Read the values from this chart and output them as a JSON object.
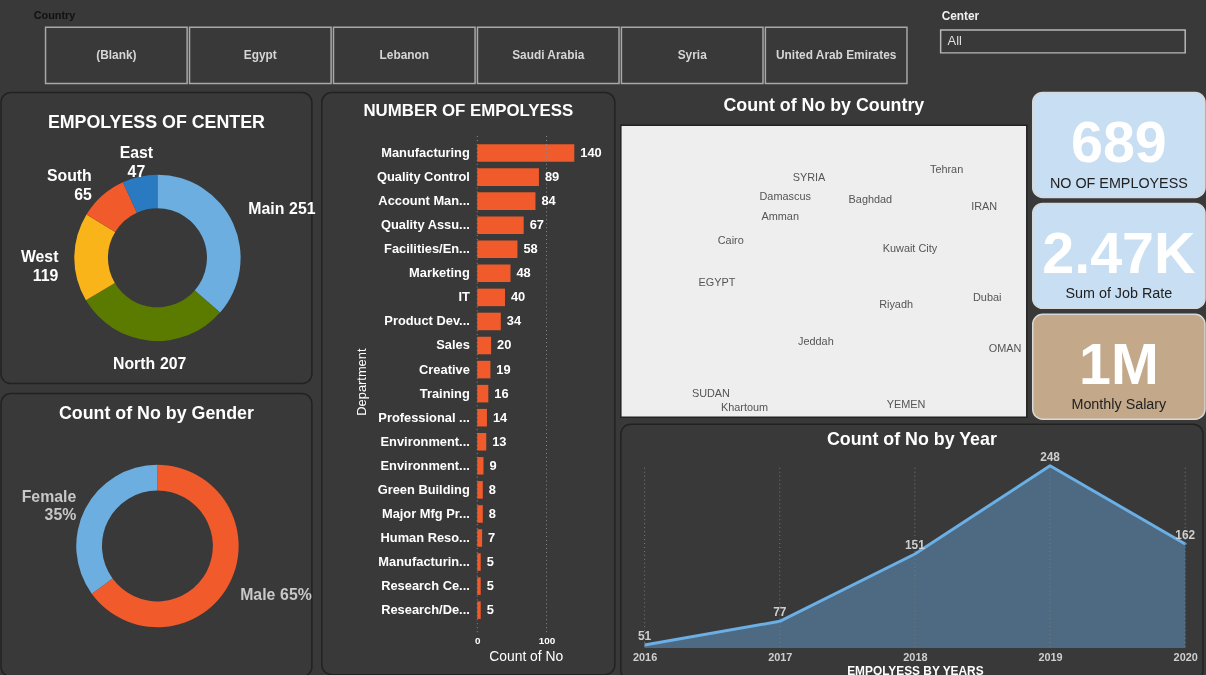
{
  "chart_data": [
    {
      "type": "other",
      "title": "Country",
      "annotations": [
        "(Blank)",
        "Egypt",
        "Lebanon",
        "Saudi Arabia",
        "Syria",
        "United Arab Emirates"
      ]
    },
    {
      "type": "other",
      "title": "Center",
      "annotations": [
        "All"
      ]
    },
    {
      "type": "donut",
      "title": "EMPOLYESS OF CENTER",
      "categories": [
        "Main",
        "North",
        "West",
        "South",
        "East"
      ],
      "values": [
        251,
        207,
        119,
        65,
        47
      ],
      "colors": [
        "#6caee0",
        "#5b7a00",
        "#f9b41a",
        "#f15a2a",
        "#2a7ac2"
      ],
      "data_labels": true
    },
    {
      "type": "bar",
      "orientation": "horizontal",
      "title": "NUMBER OF EMPOLYESS",
      "xlabel": "Count of No",
      "ylabel": "Department",
      "categories": [
        "Manufacturing",
        "Quality Control",
        "Account Man...",
        "Quality Assu...",
        "Facilities/En...",
        "Marketing",
        "IT",
        "Product Dev...",
        "Sales",
        "Creative",
        "Training",
        "Professional ...",
        "Environment...",
        "Environment...",
        "Green Building",
        "Major Mfg Pr...",
        "Human Reso...",
        "Manufacturin...",
        "Research Ce...",
        "Research/De..."
      ],
      "values": [
        140,
        89,
        84,
        67,
        58,
        48,
        40,
        34,
        20,
        19,
        16,
        14,
        13,
        9,
        8,
        8,
        7,
        5,
        5,
        5
      ],
      "color": "#f15a2a",
      "xlim": [
        0,
        140
      ],
      "xticks": [
        0,
        100
      ],
      "grid": "x",
      "data_labels": true
    },
    {
      "type": "other",
      "title": "Count of No by Country",
      "annotations": [
        "SYRIA",
        "Tehran",
        "Damascus",
        "Baghdad",
        "Amman",
        "IRAN",
        "Cairo",
        "Kuwait City",
        "EGYPT",
        "Riyadh",
        "Dubai",
        "Jeddah",
        "OMAN",
        "SUDAN",
        "Khartoum",
        "YEMEN"
      ]
    },
    {
      "type": "other",
      "annotations": [
        "689",
        "NO OF EMPLOYESS"
      ],
      "color": "#c8def2"
    },
    {
      "type": "other",
      "annotations": [
        "2.47K",
        "Sum of Job Rate"
      ],
      "color": "#c8def2"
    },
    {
      "type": "other",
      "annotations": [
        "1M",
        "Monthly Salary"
      ],
      "color": "#c3a98a"
    },
    {
      "type": "donut",
      "title": "Count of No by Gender",
      "categories": [
        "Male",
        "Female"
      ],
      "values": [
        65,
        35
      ],
      "colors": [
        "#f15a2a",
        "#6caee0"
      ],
      "value_labels": [
        "65%",
        "35%"
      ]
    },
    {
      "type": "area",
      "title": "Count of No by Year",
      "xlabel": "EMPOLYESS BY YEARS",
      "x": [
        2016,
        2017,
        2018,
        2019,
        2020
      ],
      "values": [
        51,
        77,
        151,
        248,
        162
      ],
      "color": "#6aafe6",
      "xlim": [
        2016,
        2020
      ],
      "xticks": [
        2016,
        2017,
        2018,
        2019,
        2020
      ],
      "grid": "x",
      "data_labels": true,
      "tick_labels": "x"
    }
  ]
}
